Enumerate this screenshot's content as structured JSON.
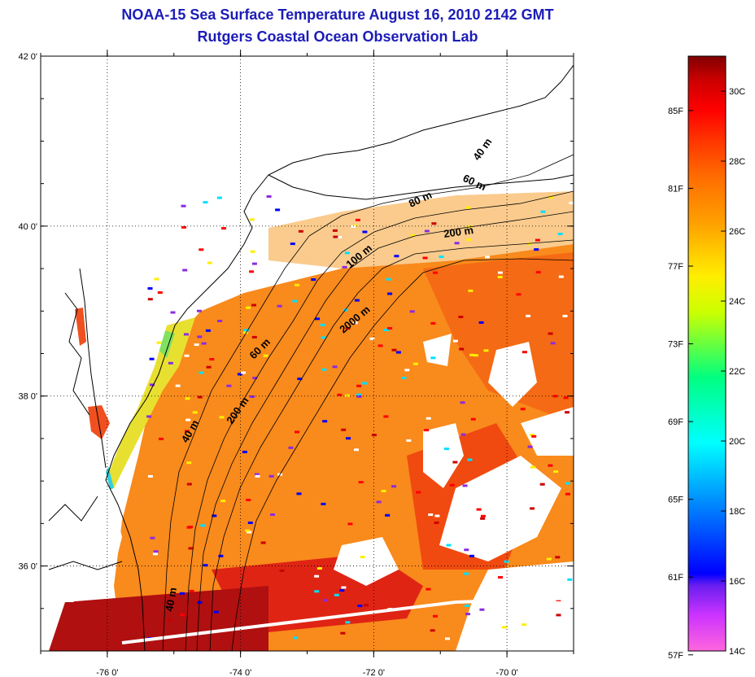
{
  "title": "NOAA-15 Sea Surface Temperature August 16, 2010 2142 GMT",
  "subtitle": "Rutgers Coastal Ocean Observation Lab",
  "map": {
    "lon_range": [
      -77,
      -69
    ],
    "lat_range": [
      35,
      42
    ],
    "lat_ticks": [
      {
        "value": 42,
        "label": "42 0'"
      },
      {
        "value": 40,
        "label": "40 0'"
      },
      {
        "value": 38,
        "label": "38 0'"
      },
      {
        "value": 36,
        "label": "36 0'"
      }
    ],
    "lon_ticks": [
      {
        "value": -76,
        "label": "-76 0'"
      },
      {
        "value": -74,
        "label": "-74 0'"
      },
      {
        "value": -72,
        "label": "-72 0'"
      },
      {
        "value": -70,
        "label": "-70 0'"
      }
    ],
    "contour_labels": [
      "40 m",
      "60 m",
      "80 m",
      "200 m",
      "100 m",
      "2000 m",
      "60 m",
      "40 m",
      "200 m",
      "40 m"
    ]
  },
  "colorbar": {
    "range_c": [
      14,
      31
    ],
    "colors": [
      "#ff66dd",
      "#cc33ff",
      "#6a1ef0",
      "#0000ff",
      "#0080ff",
      "#00ffff",
      "#00ff80",
      "#ccff00",
      "#ffee00",
      "#ffa000",
      "#ff6a00",
      "#ff3300",
      "#ff0000",
      "#cc0000",
      "#800000"
    ],
    "fahrenheit_labels": [
      "85F",
      "81F",
      "77F",
      "73F",
      "69F",
      "65F",
      "61F",
      "57F"
    ],
    "celsius_labels": [
      "30C",
      "28C",
      "26C",
      "24C",
      "22C",
      "20C",
      "18C",
      "16C",
      "14C"
    ]
  }
}
